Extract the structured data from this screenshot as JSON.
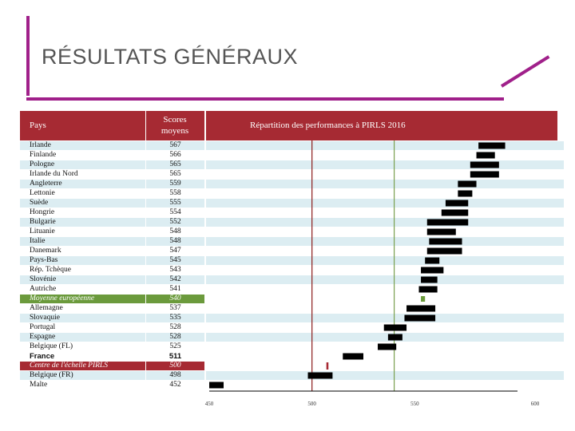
{
  "title": "RÉSULTATS GÉNÉRAUX",
  "colors": {
    "frame": "#a0208a",
    "header": "#a62a33",
    "row_alt": "#dcedf2",
    "european_avg_row": "#6b9a3c",
    "pirls_center_row": "#a62a33",
    "bar": "#000000",
    "line_center": "#8b1a1a",
    "line_european": "#7aa050"
  },
  "table": {
    "header_country": "Pays",
    "header_score": "Scores moyens",
    "header_chart": "Répartition des performances à PIRLS 2016"
  },
  "rows": [
    {
      "name": "Irlande",
      "score": "567",
      "style": "alt"
    },
    {
      "name": "Finlande",
      "score": "566",
      "style": "plain"
    },
    {
      "name": "Pologne",
      "score": "565",
      "style": "alt"
    },
    {
      "name": "Irlande du Nord",
      "score": "565",
      "style": "plain"
    },
    {
      "name": "Angleterre",
      "score": "559",
      "style": "alt"
    },
    {
      "name": "Lettonie",
      "score": "558",
      "style": "plain"
    },
    {
      "name": "Suède",
      "score": "555",
      "style": "alt"
    },
    {
      "name": "Hongrie",
      "score": "554",
      "style": "plain"
    },
    {
      "name": "Bulgarie",
      "score": "552",
      "style": "alt"
    },
    {
      "name": "Lituanie",
      "score": "548",
      "style": "plain"
    },
    {
      "name": "Italie",
      "score": "548",
      "style": "alt"
    },
    {
      "name": "Danemark",
      "score": "547",
      "style": "plain"
    },
    {
      "name": "Pays-Bas",
      "score": "545",
      "style": "alt"
    },
    {
      "name": "Rép. Tchèque",
      "score": "543",
      "style": "plain"
    },
    {
      "name": "Slovénie",
      "score": "542",
      "style": "alt"
    },
    {
      "name": "Autriche",
      "score": "541",
      "style": "plain"
    },
    {
      "name": "Moyenne européenne",
      "score": "540",
      "style": "european"
    },
    {
      "name": "Allemagne",
      "score": "537",
      "style": "plain"
    },
    {
      "name": "Slovaquie",
      "score": "535",
      "style": "alt"
    },
    {
      "name": "Portugal",
      "score": "528",
      "style": "plain"
    },
    {
      "name": "Espagne",
      "score": "528",
      "style": "alt"
    },
    {
      "name": "Belgique (FL)",
      "score": "525",
      "style": "plain"
    },
    {
      "name": "France",
      "score": "511",
      "style": "bold"
    },
    {
      "name": "Centre de l'échelle PIRLS",
      "score": "500",
      "style": "center"
    },
    {
      "name": "Belgique (FR)",
      "score": "498",
      "style": "alt"
    },
    {
      "name": "Malte",
      "score": "452",
      "style": "plain"
    }
  ],
  "chart_data": {
    "type": "bar",
    "title": "Répartition des performances à PIRLS 2016",
    "xlim": [
      450,
      600
    ],
    "x_ticks": [
      "450",
      "500",
      "550",
      "600"
    ],
    "reference_lines": [
      500,
      540
    ],
    "categories": [
      "Irlande",
      "Finlande",
      "Pologne",
      "Irlande du Nord",
      "Angleterre",
      "Lettonie",
      "Suède",
      "Hongrie",
      "Bulgarie",
      "Lituanie",
      "Italie",
      "Danemark",
      "Pays-Bas",
      "Rép. Tchèque",
      "Slovénie",
      "Autriche",
      "Moyenne européenne",
      "Allemagne",
      "Slovaquie",
      "Portugal",
      "Espagne",
      "Belgique (FL)",
      "France",
      "Centre de l'échelle PIRLS",
      "Belgique (FR)",
      "Malte"
    ],
    "series": [
      {
        "name": "low",
        "values": [
          581,
          580,
          577,
          577,
          571,
          571,
          565,
          563,
          556,
          556,
          557,
          556,
          555,
          553,
          553,
          552,
          553,
          546,
          545,
          535,
          537,
          532,
          515,
          507,
          498,
          450
        ]
      },
      {
        "name": "high",
        "values": [
          594,
          589,
          591,
          591,
          580,
          578,
          576,
          576,
          576,
          570,
          573,
          573,
          562,
          564,
          561,
          561,
          555,
          560,
          560,
          546,
          544,
          541,
          525,
          508,
          510,
          457
        ]
      }
    ]
  }
}
